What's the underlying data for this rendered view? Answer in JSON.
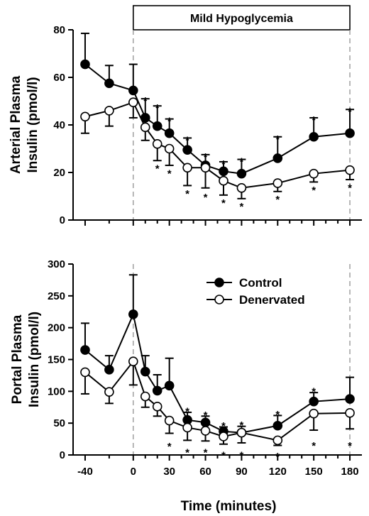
{
  "banner": {
    "text": "Mild Hypoglycemia"
  },
  "x_axis": {
    "label": "Time (minutes)",
    "ticks": [
      -40,
      0,
      30,
      60,
      90,
      120,
      150,
      180
    ],
    "minor_ticks": [
      -20,
      10,
      20,
      40,
      50,
      70,
      80,
      100,
      110,
      130,
      140,
      160,
      170
    ],
    "range": [
      -50,
      190
    ]
  },
  "legend": {
    "placement": "upper-center (lower panel)",
    "entries": [
      "Control",
      "Denervated"
    ]
  },
  "chart_data": [
    {
      "type": "line",
      "panel": "top",
      "ylabel_lines": [
        "Arterial Plasma",
        "Insulin (pmol/l)"
      ],
      "ylim": [
        0,
        80
      ],
      "yticks": [
        0,
        20,
        40,
        60,
        80
      ],
      "x": [
        -40,
        -20,
        0,
        10,
        20,
        30,
        45,
        60,
        75,
        90,
        120,
        150,
        180
      ],
      "series": [
        {
          "name": "Control",
          "marker": "filled",
          "values": [
            65.5,
            57.5,
            54.5,
            43,
            39.5,
            36.5,
            29.5,
            23,
            20.5,
            19.5,
            26,
            35,
            36.5
          ],
          "errors": [
            13,
            7.5,
            11,
            8,
            8.5,
            6,
            5,
            4.5,
            4,
            6,
            9,
            8,
            10
          ]
        },
        {
          "name": "Denervated",
          "marker": "open",
          "values": [
            43.5,
            46,
            49.5,
            39,
            32,
            30,
            22,
            22,
            16.5,
            13.5,
            15.5,
            19.5,
            21
          ],
          "errors": [
            7,
            6.5,
            6.5,
            5.5,
            7,
            7,
            7.5,
            8.5,
            6,
            4.5,
            3.5,
            3.5,
            4
          ]
        }
      ],
      "annotations": [
        {
          "x": 10,
          "y": 51,
          "text": "*"
        },
        {
          "x": 20,
          "y": 48,
          "text": "*"
        },
        {
          "x": 30,
          "y": 42.5,
          "text": "*"
        },
        {
          "x": 45,
          "y": 34.5,
          "text": "*"
        },
        {
          "x": 60,
          "y": 27.5,
          "text": "*"
        },
        {
          "x": 75,
          "y": 24.5,
          "text": "*"
        },
        {
          "x": 90,
          "y": 25.5,
          "text": "*"
        },
        {
          "x": 120,
          "y": 35,
          "text": "*"
        },
        {
          "x": 150,
          "y": 43,
          "text": "*"
        },
        {
          "x": 180,
          "y": 46.5,
          "text": "*"
        },
        {
          "x": 20,
          "y": 22.5,
          "text": "*"
        },
        {
          "x": 30,
          "y": 20.5,
          "text": "*"
        },
        {
          "x": 45,
          "y": 12,
          "text": "*"
        },
        {
          "x": 60,
          "y": 10.5,
          "text": "*"
        },
        {
          "x": 75,
          "y": 8,
          "text": "*"
        },
        {
          "x": 90,
          "y": 6.5,
          "text": "*"
        },
        {
          "x": 120,
          "y": 9.5,
          "text": "*"
        },
        {
          "x": 150,
          "y": 13.5,
          "text": "*"
        },
        {
          "x": 180,
          "y": 14.5,
          "text": "*"
        }
      ]
    },
    {
      "type": "line",
      "panel": "bottom",
      "ylabel_lines": [
        "Portal Plasma",
        "Insulin (pmol/l)"
      ],
      "ylim": [
        0,
        300
      ],
      "yticks": [
        0,
        50,
        100,
        150,
        200,
        250,
        300
      ],
      "x": [
        -40,
        -20,
        0,
        10,
        20,
        30,
        45,
        60,
        75,
        90,
        120,
        150,
        180
      ],
      "series": [
        {
          "name": "Control",
          "marker": "filled",
          "values": [
            165,
            134,
            221,
            131,
            101,
            109,
            55,
            51,
            37,
            35,
            46,
            84,
            88
          ],
          "errors": [
            42,
            22,
            62,
            25,
            25,
            43,
            12,
            10,
            7,
            10,
            16,
            14,
            34
          ]
        },
        {
          "name": "Denervated",
          "marker": "open",
          "values": [
            130,
            99,
            147,
            92,
            76,
            54,
            43,
            38,
            29,
            35,
            23,
            65,
            66
          ],
          "errors": [
            34,
            18,
            37,
            17,
            15,
            20,
            20,
            16,
            12,
            16,
            8,
            26,
            25
          ]
        }
      ],
      "annotations": [
        {
          "x": 45,
          "y": 72,
          "text": "*"
        },
        {
          "x": 60,
          "y": 66,
          "text": "*"
        },
        {
          "x": 75,
          "y": 49,
          "text": "*"
        },
        {
          "x": 90,
          "y": 50,
          "text": "*"
        },
        {
          "x": 120,
          "y": 67,
          "text": "*"
        },
        {
          "x": 150,
          "y": 103,
          "text": "*"
        },
        {
          "x": 30,
          "y": 17,
          "text": "*"
        },
        {
          "x": 45,
          "y": 7,
          "text": "*"
        },
        {
          "x": 60,
          "y": 7,
          "text": "*"
        },
        {
          "x": 75,
          "y": 3,
          "text": "*"
        },
        {
          "x": 90,
          "y": 3,
          "text": "*"
        },
        {
          "x": 120,
          "y": 1,
          "text": "*"
        },
        {
          "x": 150,
          "y": 18,
          "text": "*"
        },
        {
          "x": 180,
          "y": 18,
          "text": "*"
        }
      ]
    }
  ]
}
